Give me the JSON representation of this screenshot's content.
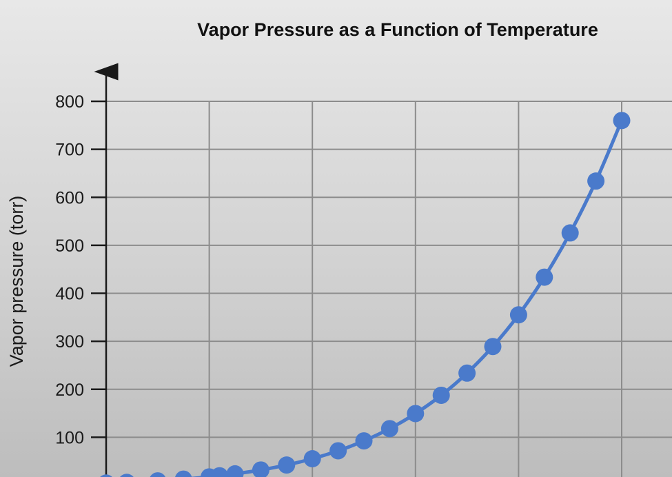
{
  "chart_data": {
    "type": "line",
    "title": "Vapor Pressure as a Function of Temperature",
    "xlabel": "",
    "ylabel": "Vapor pressure (torr)",
    "ylim": [
      0,
      800
    ],
    "yticks": [
      100,
      200,
      300,
      400,
      500,
      600,
      700,
      800
    ],
    "xlim": [
      0,
      100
    ],
    "grid": true,
    "series_color": "#4a7acb",
    "series": [
      {
        "x": [
          0,
          4,
          10,
          15,
          20,
          22,
          25,
          30,
          35,
          40,
          45,
          50,
          55,
          60,
          65,
          70,
          75,
          80,
          85,
          90,
          95,
          100
        ],
        "values": [
          4.6,
          6.1,
          9.2,
          12.8,
          17.5,
          19.8,
          23.8,
          31.8,
          42.2,
          55.3,
          71.9,
          92.5,
          118.0,
          149.4,
          187.5,
          233.7,
          289.1,
          355.1,
          433.6,
          525.8,
          633.9,
          760.0
        ]
      }
    ]
  }
}
